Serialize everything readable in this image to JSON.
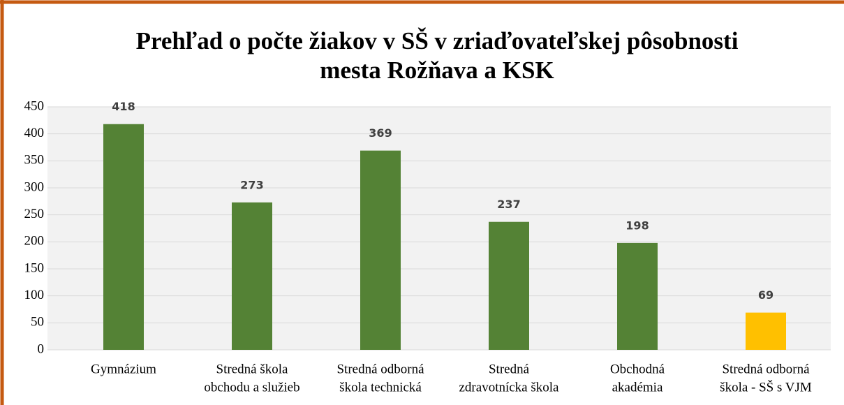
{
  "chart_data": {
    "type": "bar",
    "title": [
      "Prehľad o počte žiakov v SŠ v zriaďovateľskej pôsobnosti",
      "mesta Rožňava a KSK"
    ],
    "categories": [
      [
        "Gymnázium"
      ],
      [
        "Stredná škola",
        "obchodu a služieb"
      ],
      [
        "Stredná odborná",
        "škola technická"
      ],
      [
        "Stredná",
        "zdravotnícka škola"
      ],
      [
        "Obchodná",
        "akadémia"
      ],
      [
        "Stredná odborná",
        "škola  - SŠ s VJM"
      ]
    ],
    "values": [
      418,
      273,
      369,
      237,
      198,
      69
    ],
    "colors": [
      "#548235",
      "#548235",
      "#548235",
      "#548235",
      "#548235",
      "#ffc000"
    ],
    "ylim": [
      0,
      450
    ],
    "yticks": [
      0,
      50,
      100,
      150,
      200,
      250,
      300,
      350,
      400,
      450
    ],
    "grid": true
  }
}
